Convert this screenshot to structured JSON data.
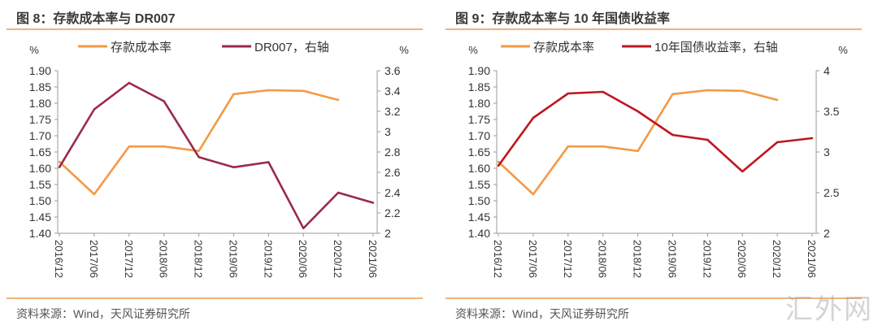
{
  "chart_data": [
    {
      "type": "line",
      "title": "图 8：存款成本率与 DR007",
      "source": "资料来源：Wind，天风证券研究所",
      "left_unit": "%",
      "right_unit": "%",
      "categories": [
        "2016/12",
        "2017/06",
        "2017/12",
        "2018/06",
        "2018/12",
        "2019/06",
        "2019/12",
        "2020/06",
        "2020/12",
        "2021/06"
      ],
      "left_axis": {
        "min": 1.4,
        "max": 1.9,
        "ticks": [
          "1.40",
          "1.45",
          "1.50",
          "1.55",
          "1.60",
          "1.65",
          "1.70",
          "1.75",
          "1.80",
          "1.85",
          "1.90"
        ]
      },
      "right_axis": {
        "min": 2,
        "max": 3.6,
        "ticks": [
          "2",
          "2.2",
          "2.4",
          "2.6",
          "2.8",
          "3",
          "3.2",
          "3.4",
          "3.6"
        ]
      },
      "legend_position": "top",
      "grid": false,
      "series": [
        {
          "name": "存款成本率",
          "axis": "left",
          "color": "#F39A45",
          "values": [
            1.62,
            1.52,
            1.667,
            1.667,
            1.653,
            1.828,
            1.84,
            1.838,
            1.81,
            null
          ]
        },
        {
          "name": "DR007，右轴",
          "axis": "right",
          "color": "#9B2A4A",
          "values": [
            2.65,
            3.22,
            3.48,
            3.3,
            2.75,
            2.65,
            2.7,
            2.05,
            2.4,
            2.3
          ]
        }
      ]
    },
    {
      "type": "line",
      "title": "图 9：存款成本率与 10 年国债收益率",
      "source": "资料来源：Wind，天风证券研究所",
      "left_unit": "%",
      "right_unit": "%",
      "categories": [
        "2016/12",
        "2017/06",
        "2017/12",
        "2018/06",
        "2018/12",
        "2019/06",
        "2019/12",
        "2020/06",
        "2020/12",
        "2021/06"
      ],
      "left_axis": {
        "min": 1.4,
        "max": 1.9,
        "ticks": [
          "1.40",
          "1.45",
          "1.50",
          "1.55",
          "1.60",
          "1.65",
          "1.70",
          "1.75",
          "1.80",
          "1.85",
          "1.90"
        ]
      },
      "right_axis": {
        "min": 2,
        "max": 4,
        "ticks": [
          "2",
          "2.5",
          "3",
          "3.5",
          "4"
        ]
      },
      "legend_position": "top",
      "grid": false,
      "series": [
        {
          "name": "存款成本率",
          "axis": "left",
          "color": "#F39A45",
          "values": [
            1.62,
            1.52,
            1.667,
            1.667,
            1.653,
            1.828,
            1.84,
            1.838,
            1.81,
            null
          ]
        },
        {
          "name": "10年国债收益率，右轴",
          "axis": "right",
          "color": "#C0161E",
          "values": [
            2.83,
            3.42,
            3.72,
            3.74,
            3.5,
            3.21,
            3.15,
            2.76,
            3.12,
            3.17
          ]
        }
      ]
    }
  ],
  "watermark": "汇外网"
}
